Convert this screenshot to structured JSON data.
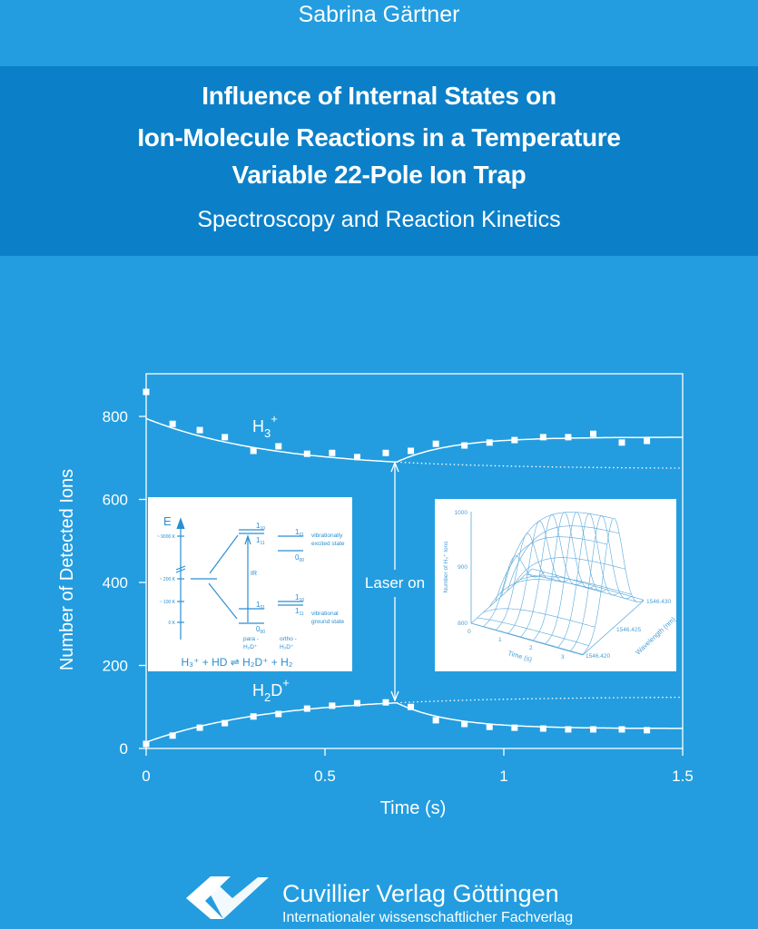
{
  "cover": {
    "author": "Sabrina Gärtner",
    "title_lines": [
      "Influence of Internal States on",
      "Ion-Molecule Reactions in a Temperature",
      "Variable 22-Pole Ion Trap"
    ],
    "subtitle": "Spectroscopy and Reaction Kinetics",
    "colors": {
      "background": "#239ddf",
      "title_band": "#0b80c8",
      "foreground": "#ffffff"
    }
  },
  "publisher": {
    "name": "Cuvillier Verlag Göttingen",
    "tagline": "Internationaler wissenschaftlicher Fachverlag",
    "logo_icon": "cuvillier-logo-icon"
  },
  "chart_data": {
    "type": "scatter",
    "xlabel": "Time (s)",
    "ylabel": "Number of Detected Ions",
    "xlim": [
      0,
      1.5
    ],
    "ylim": [
      0,
      900
    ],
    "xticks": [
      "0",
      "0.5",
      "1",
      "1.5"
    ],
    "xtick_values": [
      0,
      0.5,
      1,
      1.5
    ],
    "yticks": [
      "0",
      "200",
      "400",
      "600",
      "800"
    ],
    "ytick_values": [
      0,
      200,
      400,
      600,
      800
    ],
    "annotation": "Laser on",
    "annotation_x": 0.7,
    "series": [
      {
        "label_main": "H",
        "label_sub": "3",
        "label_sup": "+",
        "x": [
          0,
          0.074,
          0.15,
          0.22,
          0.3,
          0.37,
          0.45,
          0.52,
          0.59,
          0.67,
          0.74,
          0.81,
          0.89,
          0.96,
          1.03,
          1.11,
          1.18,
          1.25,
          1.33,
          1.4
        ],
        "y": [
          859,
          782,
          767,
          750,
          717,
          728,
          710,
          712,
          702,
          712,
          717,
          734,
          730,
          737,
          743,
          750,
          750,
          758,
          737,
          741
        ]
      },
      {
        "label_main": "H",
        "label_sub": "2",
        "label_main2": "D",
        "label_sup": "+",
        "x": [
          0,
          0.074,
          0.15,
          0.22,
          0.3,
          0.37,
          0.45,
          0.52,
          0.59,
          0.67,
          0.74,
          0.81,
          0.89,
          0.96,
          1.03,
          1.11,
          1.18,
          1.25,
          1.33,
          1.4
        ],
        "y": [
          11,
          31,
          50,
          61,
          77,
          83,
          96,
          103,
          109,
          111,
          100,
          68,
          59,
          52,
          50,
          48,
          46,
          46,
          46,
          44
        ]
      }
    ],
    "insets": {
      "energy_diagram": {
        "axis_label": "E",
        "temp_labels": [
          "~ 9000 K",
          "~ 200 K",
          "~ 100 K",
          "0 K"
        ],
        "ir_label": "IR",
        "para_levels": [
          [
            "1",
            "10"
          ],
          [
            "1",
            "11"
          ],
          [
            "1",
            "01"
          ],
          [
            "0",
            "00"
          ]
        ],
        "ortho_levels": [
          [
            "1",
            "01"
          ],
          [
            "0",
            "00"
          ],
          [
            "1",
            "10"
          ],
          [
            "1",
            "11"
          ]
        ],
        "excited_label": [
          "vibrationally",
          "excited state"
        ],
        "ground_label": [
          "vibrational",
          "ground state"
        ],
        "para_label": [
          "para -",
          "H₂D⁺"
        ],
        "ortho_label": [
          "ortho -",
          "H₂D⁺"
        ],
        "equation": "H₃⁺ + HD ⇌ H₂D⁺ + H₂"
      },
      "surface_plot": {
        "zlabel": "Number of H₃⁺ Ions",
        "zticks": [
          "800",
          "900",
          "1000"
        ],
        "xlabel": "Time (s)",
        "xticks": [
          "0",
          "1",
          "2",
          "3"
        ],
        "ylabel": "Wavelength (nm)",
        "yticks": [
          "1546.420",
          "1546.425",
          "1546.430"
        ]
      }
    }
  }
}
